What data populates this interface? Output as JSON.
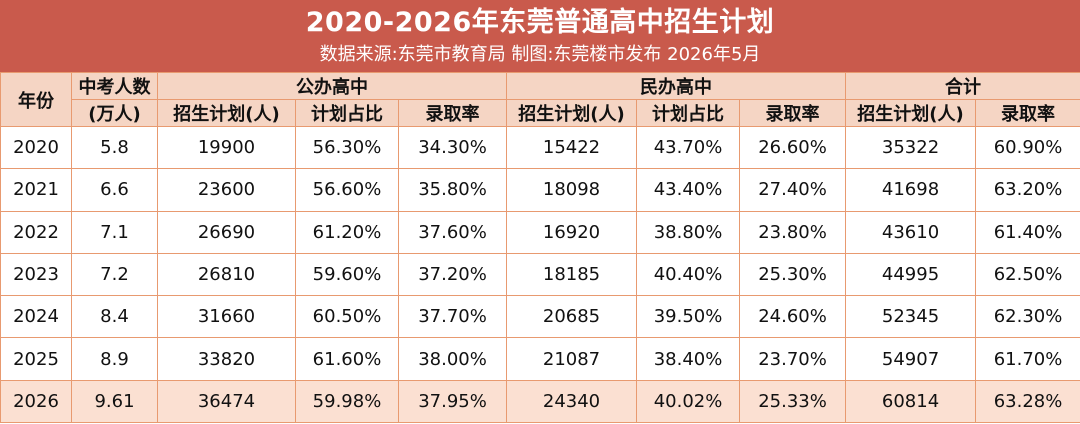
{
  "title": "2020-2026年东莞普通高中招生计划",
  "subtitle": "数据来源:东莞市教育局  制图:东莞楼市发布  2026年5月",
  "headers": {
    "year": "年份",
    "exam_takers_line1": "中考人数",
    "exam_takers_line2": "(万人)",
    "public_group": "公办高中",
    "private_group": "民办高中",
    "total_group": "合计",
    "public_plan": "招生计划(人)",
    "public_share": "计划占比",
    "public_rate": "录取率",
    "private_plan": "招生计划(人)",
    "private_share": "计划占比",
    "private_rate": "录取率",
    "total_plan": "招生计划(人)",
    "total_rate": "录取率"
  },
  "rows": [
    [
      "2020",
      "5.8",
      "19900",
      "56.30%",
      "34.30%",
      "15422",
      "43.70%",
      "26.60%",
      "35322",
      "60.90%"
    ],
    [
      "2021",
      "6.6",
      "23600",
      "56.60%",
      "35.80%",
      "18098",
      "43.40%",
      "27.40%",
      "41698",
      "63.20%"
    ],
    [
      "2022",
      "7.1",
      "26690",
      "61.20%",
      "37.60%",
      "16920",
      "38.80%",
      "23.80%",
      "43610",
      "61.40%"
    ],
    [
      "2023",
      "7.2",
      "26810",
      "59.60%",
      "37.20%",
      "18185",
      "40.40%",
      "25.30%",
      "44995",
      "62.50%"
    ],
    [
      "2024",
      "8.4",
      "31660",
      "60.50%",
      "37.70%",
      "20685",
      "39.50%",
      "24.60%",
      "52345",
      "62.30%"
    ],
    [
      "2025",
      "8.9",
      "33820",
      "61.60%",
      "38.00%",
      "21087",
      "38.40%",
      "23.70%",
      "54907",
      "61.70%"
    ],
    [
      "2026",
      "9.61",
      "36474",
      "59.98%",
      "37.95%",
      "24340",
      "40.02%",
      "25.33%",
      "60814",
      "63.28%"
    ]
  ],
  "colors": {
    "banner": "#c95a4c",
    "header_fill": "#f5d5c4",
    "highlight_row": "#fbe0d2",
    "border": "#e89a70"
  }
}
